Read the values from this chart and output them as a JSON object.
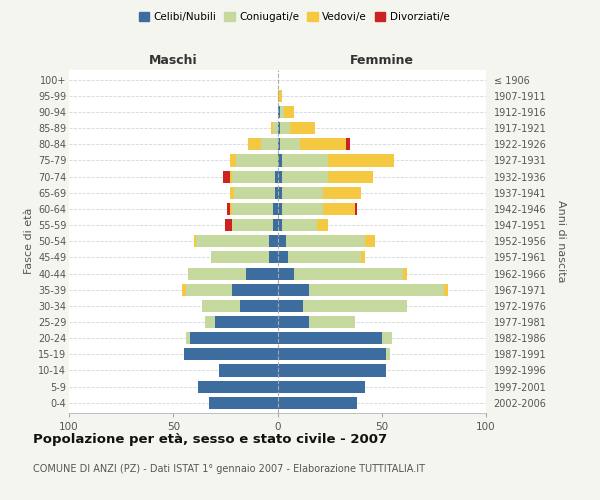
{
  "age_groups": [
    "0-4",
    "5-9",
    "10-14",
    "15-19",
    "20-24",
    "25-29",
    "30-34",
    "35-39",
    "40-44",
    "45-49",
    "50-54",
    "55-59",
    "60-64",
    "65-69",
    "70-74",
    "75-79",
    "80-84",
    "85-89",
    "90-94",
    "95-99",
    "100+"
  ],
  "birth_years": [
    "2002-2006",
    "1997-2001",
    "1992-1996",
    "1987-1991",
    "1982-1986",
    "1977-1981",
    "1972-1976",
    "1967-1971",
    "1962-1966",
    "1957-1961",
    "1952-1956",
    "1947-1951",
    "1942-1946",
    "1937-1941",
    "1932-1936",
    "1927-1931",
    "1922-1926",
    "1917-1921",
    "1912-1916",
    "1907-1911",
    "≤ 1906"
  ],
  "colors": {
    "celibi": "#3d6d9e",
    "coniugati": "#c5d89d",
    "vedovi": "#f5c842",
    "divorziati": "#cc2222"
  },
  "maschi": {
    "celibi": [
      33,
      38,
      28,
      45,
      42,
      30,
      18,
      22,
      15,
      4,
      4,
      2,
      2,
      1,
      1,
      0,
      0,
      0,
      0,
      0,
      0
    ],
    "coniugati": [
      0,
      0,
      0,
      0,
      2,
      5,
      18,
      22,
      28,
      28,
      35,
      20,
      20,
      20,
      21,
      20,
      8,
      2,
      0,
      0,
      0
    ],
    "vedovi": [
      0,
      0,
      0,
      0,
      0,
      0,
      0,
      2,
      0,
      0,
      1,
      0,
      1,
      2,
      1,
      3,
      6,
      1,
      0,
      0,
      0
    ],
    "divorziati": [
      0,
      0,
      0,
      0,
      0,
      0,
      0,
      0,
      0,
      0,
      0,
      3,
      1,
      0,
      3,
      0,
      0,
      0,
      0,
      0,
      0
    ]
  },
  "femmine": {
    "celibi": [
      38,
      42,
      52,
      52,
      50,
      15,
      12,
      15,
      8,
      5,
      4,
      2,
      2,
      2,
      2,
      2,
      1,
      1,
      1,
      0,
      0
    ],
    "coniugati": [
      0,
      0,
      0,
      2,
      5,
      22,
      50,
      65,
      52,
      35,
      38,
      17,
      20,
      20,
      22,
      22,
      10,
      5,
      2,
      0,
      0
    ],
    "vedovi": [
      0,
      0,
      0,
      0,
      0,
      0,
      0,
      2,
      2,
      2,
      5,
      5,
      15,
      18,
      22,
      32,
      22,
      12,
      5,
      2,
      0
    ],
    "divorziati": [
      0,
      0,
      0,
      0,
      0,
      0,
      0,
      0,
      0,
      0,
      0,
      0,
      1,
      0,
      0,
      0,
      2,
      0,
      0,
      0,
      0
    ]
  },
  "xlim": 100,
  "title": "Popolazione per età, sesso e stato civile - 2007",
  "subtitle": "COMUNE DI ANZI (PZ) - Dati ISTAT 1° gennaio 2007 - Elaborazione TUTTITALIA.IT",
  "ylabel_left": "Fasce di età",
  "ylabel_right": "Anni di nascita",
  "xlabel_left": "Maschi",
  "xlabel_right": "Femmine",
  "legend_labels": [
    "Celibi/Nubili",
    "Coniugati/e",
    "Vedovi/e",
    "Divorziati/e"
  ],
  "background_color": "#f5f5f0",
  "plot_background": "#ffffff",
  "grid_color": "#cccccc"
}
